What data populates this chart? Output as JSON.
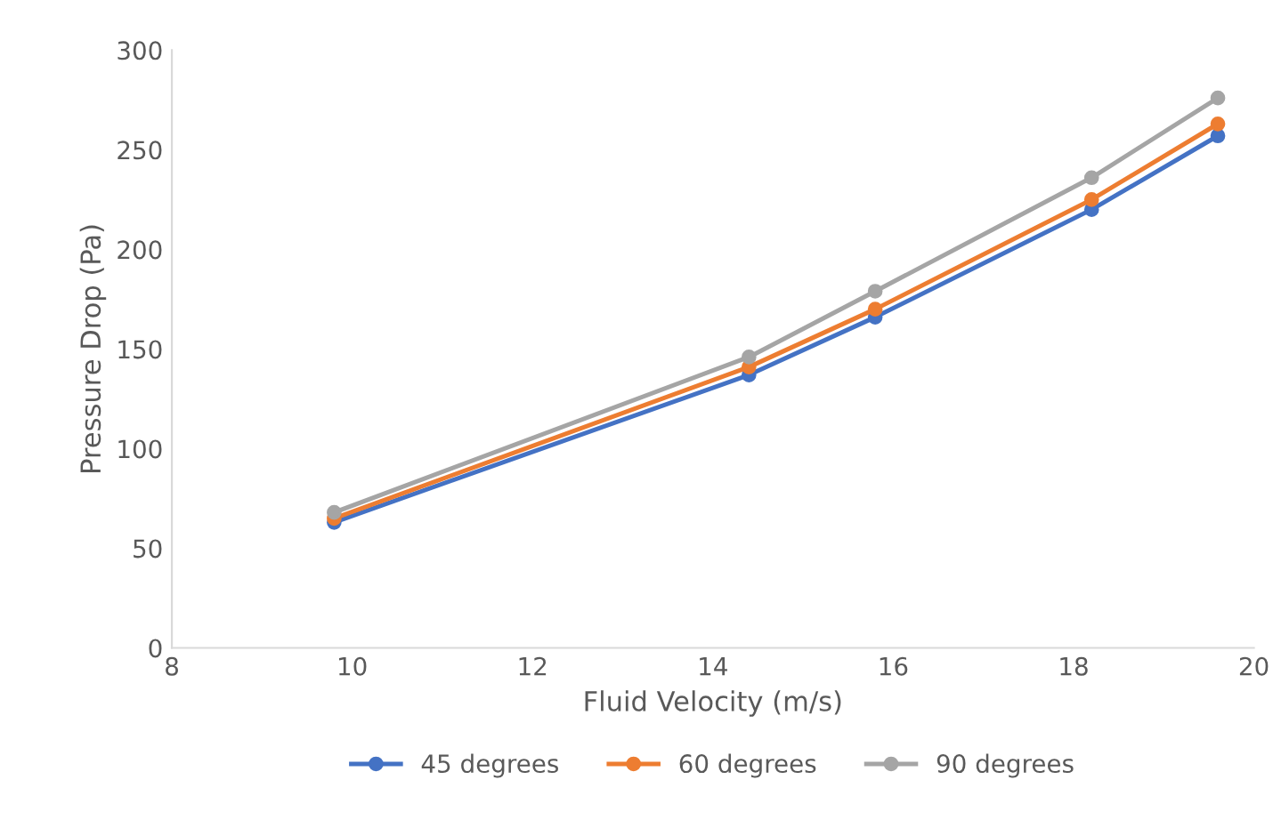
{
  "chart_data": {
    "type": "line",
    "xlabel": "Fluid Velocity (m/s)",
    "ylabel": "Pressure Drop (Pa)",
    "x": [
      9.8,
      14.4,
      15.8,
      18.2,
      19.6
    ],
    "series": [
      {
        "name": "45 degrees",
        "color": "#4472c4",
        "values": [
          63,
          137,
          166,
          220,
          257
        ]
      },
      {
        "name": "60 degrees",
        "color": "#ed7d31",
        "values": [
          65,
          141,
          170,
          225,
          263
        ]
      },
      {
        "name": "90 degrees",
        "color": "#a5a5a5",
        "values": [
          68,
          146,
          179,
          236,
          276
        ]
      }
    ],
    "xlim": [
      8,
      20
    ],
    "xticks": [
      8,
      10,
      12,
      14,
      16,
      18,
      20
    ],
    "ylim": [
      0,
      300
    ],
    "yticks": [
      0,
      50,
      100,
      150,
      200,
      250,
      300
    ],
    "grid": false,
    "legend": "bottom",
    "marker": "circle",
    "line_style": "solid"
  }
}
